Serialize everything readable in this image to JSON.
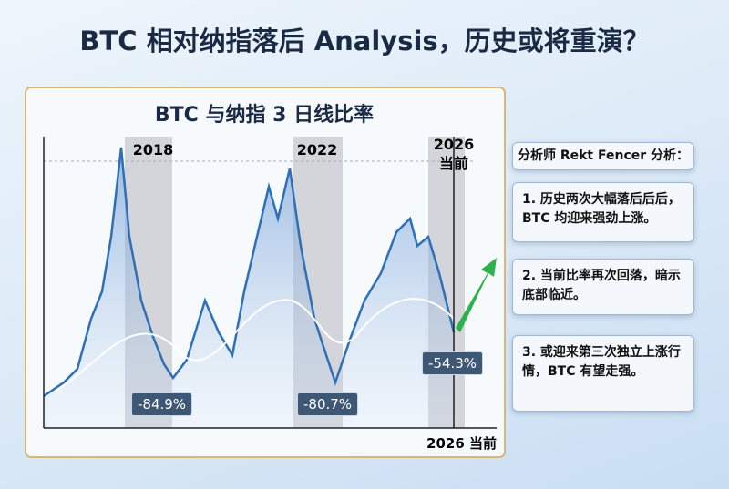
{
  "header": {
    "title": "BTC 相对纳指落后 Analysis，历史或将重演？"
  },
  "chart": {
    "title": "BTC 与纳指 3 日线比率",
    "periods": [
      "2018",
      "2022",
      "2026",
      "当前"
    ],
    "drawdowns": [
      "-84.9%",
      "-80.7%",
      "-54.3%"
    ],
    "x_label": "2026 当前"
  },
  "panel": {
    "title": "分析师 Rekt Fencer 分析：",
    "points": [
      "1. 历史两次大幅落后后后，BTC 均迎来强劲上涨。",
      "2. 当前比率再次回落，暗示底部临近。",
      "3. 或迎来第三次独立上涨行情，BTC 有望走强。"
    ]
  }
}
